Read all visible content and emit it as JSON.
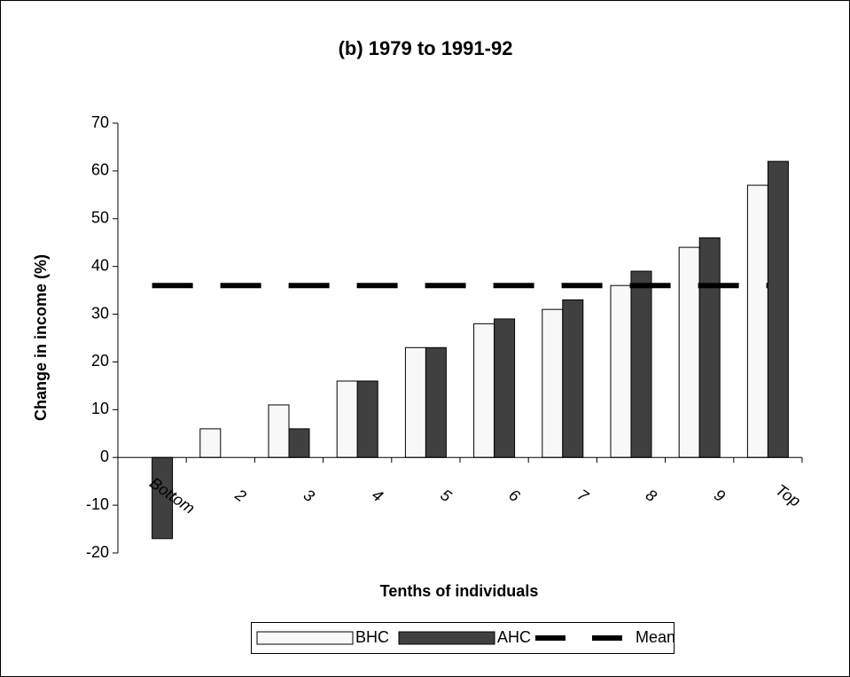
{
  "chart_data": {
    "type": "bar",
    "title": "(b) 1979 to 1991-92",
    "x_label": "Tenths of individuals",
    "y_label": "Change in income (%)",
    "categories": [
      "Bottom",
      "2",
      "3",
      "4",
      "5",
      "6",
      "7",
      "8",
      "9",
      "Top"
    ],
    "series": [
      {
        "name": "BHC",
        "color": "#f8f8f8",
        "values": [
          0,
          6,
          11,
          16,
          23,
          28,
          31,
          36,
          44,
          57
        ]
      },
      {
        "name": "AHC",
        "color": "#404040",
        "values": [
          -17,
          0,
          6,
          16,
          23,
          29,
          33,
          39,
          46,
          62
        ]
      }
    ],
    "mean": {
      "name": "Mean",
      "value": 36,
      "color": "#000000"
    },
    "ylim": [
      -20,
      70
    ],
    "yticks": [
      -20,
      -10,
      0,
      10,
      20,
      30,
      40,
      50,
      60,
      70
    ],
    "grid": false,
    "legend": "bottom"
  }
}
